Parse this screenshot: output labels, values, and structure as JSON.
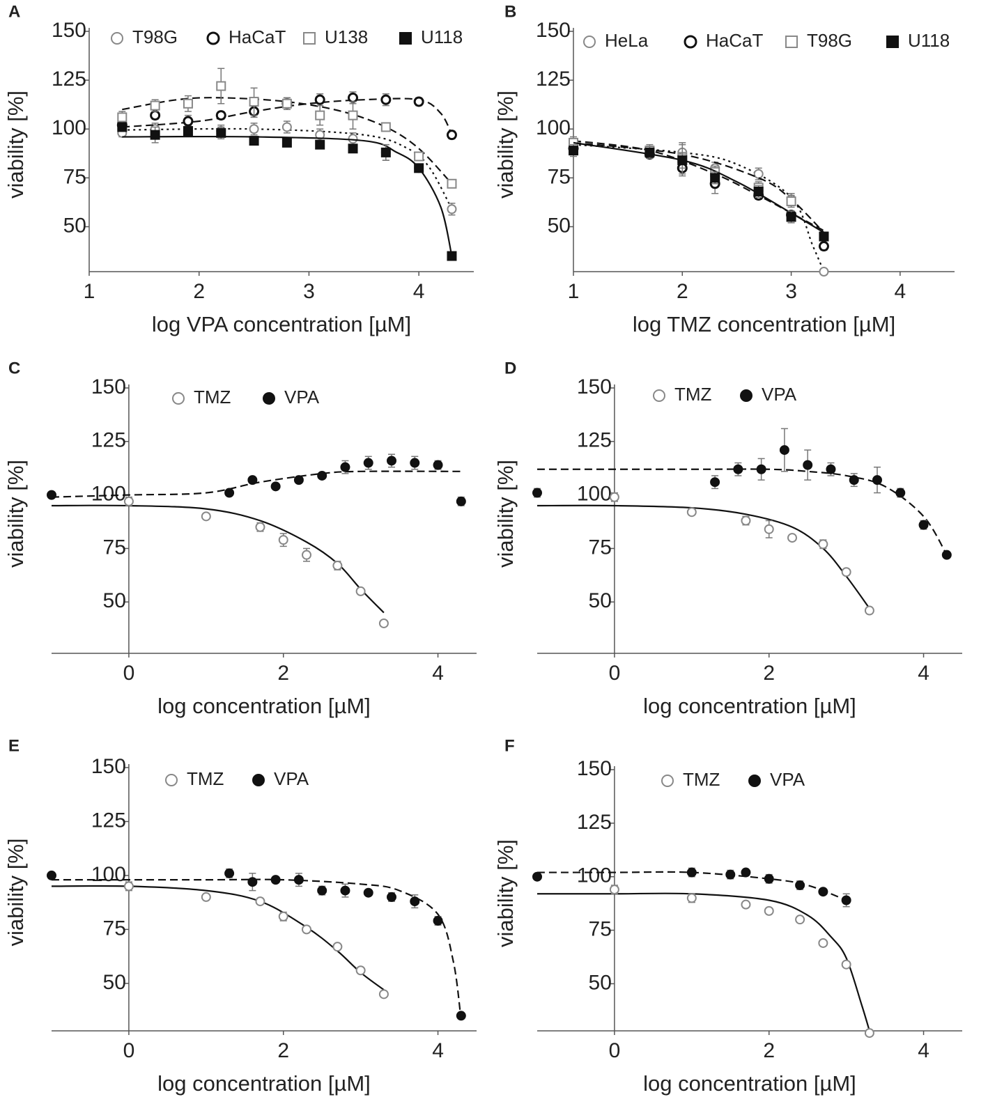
{
  "chart_data": [
    {
      "type": "scatter",
      "panel_label": "A",
      "xlabel": "log VPA concentration [µM]",
      "ylabel": "viability [%]",
      "xlim": [
        1,
        4.5
      ],
      "xticks": [
        1,
        2,
        3,
        4
      ],
      "ylim": [
        27,
        150
      ],
      "yticks": [
        50,
        75,
        100,
        125,
        150
      ],
      "legend": "top",
      "series": [
        {
          "name": "T98G",
          "color": "#888888",
          "marker": "open-circle",
          "line": "dotted",
          "x": [
            1.3,
            1.6,
            1.9,
            2.2,
            2.5,
            2.8,
            3.1,
            3.4,
            3.7,
            4.0,
            4.3
          ],
          "values": [
            98,
            100,
            100,
            99,
            100,
            101,
            97,
            95,
            88,
            80,
            59
          ],
          "errors": [
            2,
            3,
            3,
            3,
            3,
            3,
            3,
            3,
            4,
            2,
            3
          ],
          "fit": {
            "x": [
              1.3,
              2.5,
              3.5,
              3.9,
              4.1,
              4.3
            ],
            "values": [
              99.5,
              100,
              97,
              90,
              80,
              59
            ]
          }
        },
        {
          "name": "HaCaT",
          "color": "#111111",
          "marker": "open-circle",
          "line": "dashed",
          "x": [
            1.3,
            1.6,
            1.9,
            2.2,
            2.5,
            2.8,
            3.1,
            3.4,
            3.7,
            4.0,
            4.3
          ],
          "values": [
            102,
            107,
            104,
            107,
            109,
            113,
            115,
            116,
            115,
            114,
            97
          ],
          "errors": [
            2,
            2,
            3,
            2,
            3,
            3,
            3,
            3,
            3,
            2,
            2
          ],
          "fit": {
            "x": [
              1.3,
              2,
              2.5,
              3,
              3.5,
              4,
              4.2,
              4.3
            ],
            "values": [
              101,
              104,
              109,
              113,
              115,
              115,
              108,
              97
            ]
          }
        },
        {
          "name": "U138",
          "color": "#888888",
          "marker": "open-square",
          "line": "dashed",
          "x": [
            1.3,
            1.6,
            1.9,
            2.2,
            2.5,
            2.8,
            3.1,
            3.4,
            3.7,
            4.0,
            4.3
          ],
          "values": [
            106,
            112,
            113,
            122,
            114,
            113,
            107,
            107,
            101,
            86,
            72
          ],
          "errors": [
            3,
            3,
            4,
            9,
            7,
            3,
            5,
            7,
            2,
            2,
            2
          ],
          "fit": {
            "x": [
              1.3,
              1.8,
              2.2,
              2.8,
              3.3,
              3.7,
              4,
              4.3
            ],
            "values": [
              110,
              115,
              116,
              114,
              109,
              101,
              90,
              72
            ]
          }
        },
        {
          "name": "U118",
          "color": "#111111",
          "marker": "filled-square",
          "line": "solid",
          "x": [
            1.3,
            1.6,
            1.9,
            2.2,
            2.5,
            2.8,
            3.1,
            3.4,
            3.7,
            4.0,
            4.3
          ],
          "values": [
            101,
            97,
            99,
            98,
            94,
            93,
            92,
            90,
            88,
            80,
            35
          ],
          "errors": [
            2,
            4,
            2,
            3,
            2,
            2,
            2,
            2,
            4,
            2,
            1
          ],
          "fit": {
            "x": [
              1.3,
              2.5,
              3.5,
              3.8,
              4,
              4.2,
              4.3
            ],
            "values": [
              96,
              96,
              94,
              88,
              80,
              60,
              35
            ]
          }
        }
      ]
    },
    {
      "type": "scatter",
      "panel_label": "B",
      "xlabel": "log TMZ concentration [µM]",
      "ylabel": "viability [%]",
      "xlim": [
        1,
        4.5
      ],
      "xticks": [
        1,
        2,
        3,
        4
      ],
      "ylim": [
        27,
        150
      ],
      "yticks": [
        50,
        75,
        100,
        125,
        150
      ],
      "legend": "top",
      "series": [
        {
          "name": "HeLa",
          "color": "#888888",
          "marker": "open-circle",
          "line": "dotted",
          "x": [
            1,
            1.7,
            2,
            2.3,
            2.7,
            3,
            3.3
          ],
          "values": [
            92,
            88,
            88,
            80,
            77,
            64,
            27
          ],
          "errors": [
            3,
            3,
            4,
            3,
            3,
            3,
            1
          ],
          "fit": {
            "x": [
              1,
              2,
              2.5,
              3,
              3.2,
              3.3
            ],
            "values": [
              92,
              88,
              82,
              65,
              40,
              27
            ]
          }
        },
        {
          "name": "HaCaT",
          "color": "#111111",
          "marker": "open-circle",
          "line": "dashed",
          "x": [
            1,
            1.7,
            2,
            2.3,
            2.7,
            3,
            3.3
          ],
          "values": [
            90,
            87,
            80,
            72,
            66,
            56,
            40
          ],
          "errors": [
            2,
            2,
            4,
            5,
            2,
            2,
            2
          ],
          "fit": {
            "x": [
              1,
              1.7,
              2.3,
              2.7,
              3,
              3.3
            ],
            "values": [
              94,
              89,
              77,
              66,
              57,
              48
            ]
          }
        },
        {
          "name": "T98G",
          "color": "#888888",
          "marker": "open-square",
          "line": "dashed",
          "x": [
            1,
            1.7,
            2,
            2.3,
            2.7,
            3,
            3.3
          ],
          "values": [
            93,
            89,
            85,
            78,
            70,
            63,
            45
          ],
          "errors": [
            3,
            3,
            8,
            3,
            3,
            3,
            2
          ],
          "fit": {
            "x": [
              1,
              2,
              2.7,
              3,
              3.3
            ],
            "values": [
              93,
              87,
              75,
              64,
              47
            ]
          }
        },
        {
          "name": "U118",
          "color": "#111111",
          "marker": "filled-square",
          "line": "solid",
          "x": [
            1,
            1.7,
            2,
            2.3,
            2.7,
            3,
            3.3
          ],
          "values": [
            89,
            88,
            84,
            75,
            68,
            55,
            45
          ],
          "errors": [
            3,
            3,
            4,
            3,
            3,
            3,
            2
          ],
          "fit": {
            "x": [
              1,
              2,
              2.5,
              3,
              3.3
            ],
            "values": [
              93,
              84,
              73,
              57,
              47
            ]
          }
        }
      ]
    },
    {
      "type": "scatter",
      "panel_label": "C",
      "xlabel": "log concentration [µM]",
      "ylabel": "viability [%]",
      "xlim": [
        -1,
        4.5
      ],
      "xticks": [
        0,
        2,
        4
      ],
      "ylim": [
        26,
        150
      ],
      "yticks": [
        50,
        75,
        100,
        125,
        150
      ],
      "legend": "top",
      "series": [
        {
          "name": "TMZ",
          "color": "#888888",
          "marker": "open-circle",
          "line": "solid",
          "x": [
            0,
            1,
            1.7,
            2,
            2.3,
            2.7,
            3,
            3.3
          ],
          "values": [
            97,
            90,
            85,
            79,
            72,
            67,
            55,
            40
          ],
          "errors": [
            2,
            1,
            2,
            3,
            3,
            2,
            1,
            1
          ],
          "fit": {
            "x": [
              -1,
              0,
              1,
              1.7,
              2.3,
              2.7,
              3,
              3.3
            ],
            "values": [
              95,
              95,
              93.5,
              88,
              78,
              68,
              56,
              45
            ]
          }
        },
        {
          "name": "VPA",
          "color": "#111111",
          "marker": "filled-circle",
          "line": "dashed",
          "x": [
            -1,
            1.3,
            1.6,
            1.9,
            2.2,
            2.5,
            2.8,
            3.1,
            3.4,
            3.7,
            4,
            4.3
          ],
          "values": [
            100,
            101,
            107,
            104,
            107,
            109,
            113,
            115,
            116,
            115,
            114,
            97
          ],
          "errors": [
            1,
            1,
            1,
            1,
            1,
            1,
            3,
            3,
            3,
            3,
            2,
            2
          ],
          "fit": {
            "x": [
              -1,
              0,
              1,
              1.7,
              2.5,
              3,
              4.3
            ],
            "values": [
              99,
              100,
              101,
              106,
              110,
              111,
              111
            ]
          }
        }
      ]
    },
    {
      "type": "scatter",
      "panel_label": "D",
      "xlabel": "log concentration [µM]",
      "ylabel": "viability [%]",
      "xlim": [
        -1,
        4.5
      ],
      "xticks": [
        0,
        2,
        4
      ],
      "ylim": [
        26,
        150
      ],
      "yticks": [
        50,
        75,
        100,
        125,
        150
      ],
      "legend": "top",
      "series": [
        {
          "name": "TMZ",
          "color": "#888888",
          "marker": "open-circle",
          "line": "solid",
          "x": [
            0,
            1,
            1.7,
            2,
            2.3,
            2.7,
            3,
            3.3
          ],
          "values": [
            99,
            92,
            88,
            84,
            80,
            77,
            64,
            46
          ],
          "errors": [
            2,
            1,
            2,
            4,
            1,
            2,
            1,
            1
          ],
          "fit": {
            "x": [
              -1,
              0,
              1,
              1.7,
              2.3,
              2.7,
              3,
              3.3
            ],
            "values": [
              95,
              95,
              94,
              91,
              85,
              75,
              62,
              47
            ]
          }
        },
        {
          "name": "VPA",
          "color": "#111111",
          "marker": "filled-circle",
          "line": "dashed",
          "x": [
            -1,
            1.3,
            1.6,
            1.9,
            2.2,
            2.5,
            2.8,
            3.1,
            3.4,
            3.7,
            4,
            4.3
          ],
          "values": [
            101,
            106,
            112,
            112,
            121,
            114,
            112,
            107,
            107,
            101,
            86,
            72
          ],
          "errors": [
            2,
            3,
            3,
            5,
            10,
            7,
            3,
            3,
            6,
            2,
            2,
            1
          ],
          "fit": {
            "x": [
              -1,
              1,
              2,
              2.5,
              3,
              3.5,
              4,
              4.3
            ],
            "values": [
              112,
              112,
              112,
              111,
              109,
              104,
              90,
              72
            ]
          }
        }
      ]
    },
    {
      "type": "scatter",
      "panel_label": "E",
      "xlabel": "log concentration [µM]",
      "ylabel": "viability [%]",
      "xlim": [
        -1,
        4.5
      ],
      "xticks": [
        0,
        2,
        4
      ],
      "ylim": [
        28,
        150
      ],
      "yticks": [
        50,
        75,
        100,
        125,
        150
      ],
      "legend": "top",
      "series": [
        {
          "name": "TMZ",
          "color": "#888888",
          "marker": "open-circle",
          "line": "solid",
          "x": [
            0,
            1,
            1.7,
            2,
            2.3,
            2.7,
            3,
            3.3
          ],
          "values": [
            95,
            90,
            88,
            81,
            75,
            67,
            56,
            45
          ],
          "errors": [
            2,
            1,
            1,
            2,
            1,
            1,
            1,
            1
          ],
          "fit": {
            "x": [
              -1,
              0,
              1,
              1.7,
              2.3,
              2.7,
              3,
              3.3
            ],
            "values": [
              95,
              95,
              93,
              88,
              76,
              65,
              55,
              47
            ]
          }
        },
        {
          "name": "VPA",
          "color": "#111111",
          "marker": "filled-circle",
          "line": "dashed",
          "x": [
            -1,
            1.3,
            1.6,
            1.9,
            2.2,
            2.5,
            2.8,
            3.1,
            3.4,
            3.7,
            4,
            4.3
          ],
          "values": [
            100,
            101,
            97,
            98,
            98,
            93,
            93,
            92,
            90,
            88,
            79,
            35
          ],
          "errors": [
            1,
            2,
            4,
            1,
            3,
            2,
            3,
            1,
            2,
            3,
            2,
            1
          ],
          "fit": {
            "x": [
              -1,
              1,
              2,
              3,
              3.5,
              4,
              4.2,
              4.3
            ],
            "values": [
              98,
              98,
              98,
              96,
              93,
              82,
              60,
              33
            ]
          }
        }
      ]
    },
    {
      "type": "scatter",
      "panel_label": "F",
      "xlabel": "log concentration [µM]",
      "ylabel": "viability [%]",
      "xlim": [
        -1,
        4.5
      ],
      "xticks": [
        0,
        2,
        4
      ],
      "ylim": [
        28,
        150
      ],
      "yticks": [
        50,
        75,
        100,
        125,
        150
      ],
      "legend": "top",
      "series": [
        {
          "name": "TMZ",
          "color": "#888888",
          "marker": "open-circle",
          "line": "solid",
          "x": [
            0,
            1,
            1.7,
            2,
            2.4,
            2.7,
            3,
            3.3
          ],
          "values": [
            94,
            90,
            87,
            84,
            80,
            69,
            59,
            27
          ],
          "errors": [
            2,
            2,
            1,
            1,
            1,
            1,
            1,
            1
          ],
          "fit": {
            "x": [
              -1,
              0,
              1,
              2,
              2.5,
              2.8,
              3,
              3.2,
              3.3
            ],
            "values": [
              92,
              92,
              92,
              89,
              82,
              72,
              62,
              40,
              28
            ]
          }
        },
        {
          "name": "VPA",
          "color": "#111111",
          "marker": "filled-circle",
          "line": "dashed",
          "x": [
            -1,
            1,
            1.5,
            1.7,
            2,
            2.4,
            2.7,
            3
          ],
          "values": [
            100,
            102,
            101,
            102,
            99,
            96,
            93,
            89
          ],
          "errors": [
            1,
            2,
            2,
            1,
            2,
            2,
            1,
            3
          ],
          "fit": {
            "x": [
              -1,
              0,
              1,
              2,
              2.5,
              3
            ],
            "values": [
              102,
              102,
              102,
              99,
              96,
              89
            ]
          }
        }
      ]
    }
  ]
}
